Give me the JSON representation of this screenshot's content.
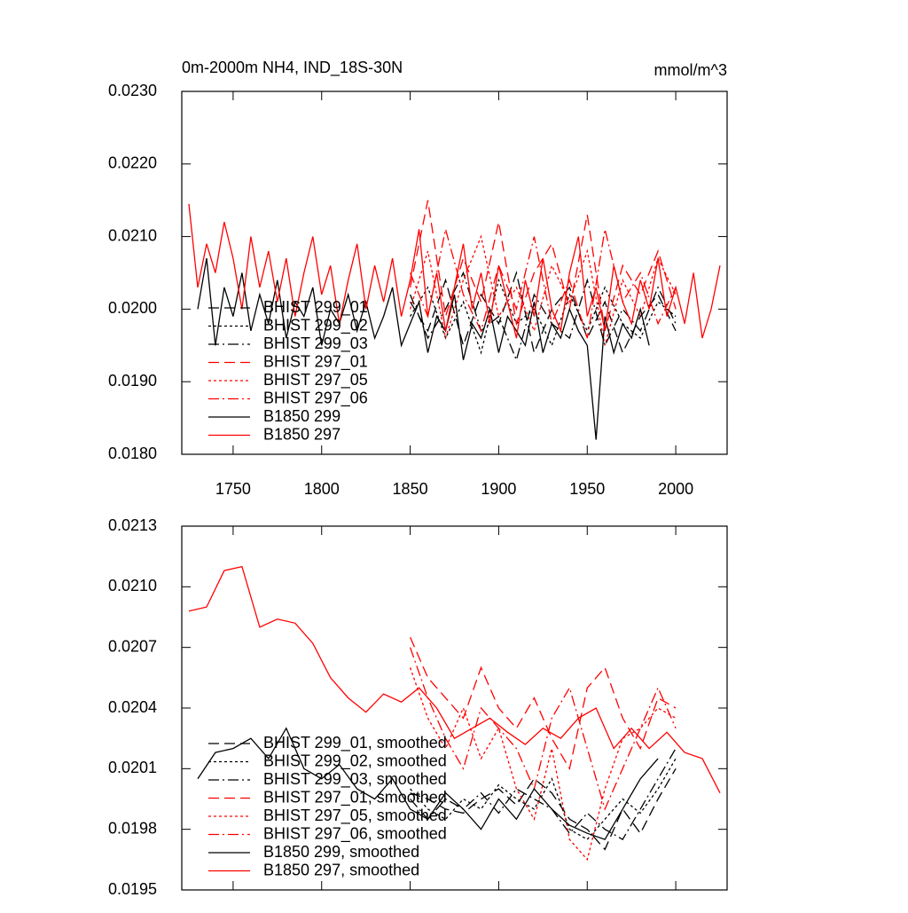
{
  "chart_data": [
    {
      "type": "line",
      "title": "0m-2000m NH4, IND_18S-30N",
      "units": "mmol/m^3",
      "xlim": [
        1721,
        2029
      ],
      "ylim": [
        0.018,
        0.023
      ],
      "xticks": [
        1750,
        1800,
        1850,
        1900,
        1950,
        2000
      ],
      "show_xtick_labels": true,
      "yticks": [
        {
          "value": 0.018,
          "label": "0.0180"
        },
        {
          "value": 0.019,
          "label": "0.0190"
        },
        {
          "value": 0.02,
          "label": "0.0200"
        },
        {
          "value": 0.021,
          "label": "0.0210"
        },
        {
          "value": 0.022,
          "label": "0.0220"
        },
        {
          "value": 0.023,
          "label": "0.0230"
        }
      ],
      "series": [
        {
          "name": "BHIST 299_01",
          "color": "#000000",
          "dash": "12 6",
          "x": [
            1850,
            1860,
            1870,
            1880,
            1890,
            1900,
            1910,
            1920,
            1930,
            1940,
            1950,
            1960,
            1970,
            1980,
            1990,
            2000
          ],
          "values": [
            0.0201,
            0.0197,
            0.0204,
            0.0195,
            0.0202,
            0.0198,
            0.0205,
            0.0194,
            0.02,
            0.0203,
            0.0196,
            0.0201,
            0.0194,
            0.0199,
            0.0202,
            0.0197
          ]
        },
        {
          "name": "BHIST 299_02",
          "color": "#000000",
          "dash": "3 3",
          "x": [
            1850,
            1860,
            1870,
            1880,
            1890,
            1900,
            1910,
            1920,
            1930,
            1940,
            1950,
            1960,
            1970,
            1980,
            1990,
            2000
          ],
          "values": [
            0.0199,
            0.0203,
            0.0196,
            0.0201,
            0.0194,
            0.0204,
            0.0198,
            0.02,
            0.0195,
            0.0202,
            0.0197,
            0.0203,
            0.0198,
            0.0196,
            0.0201,
            0.0199
          ]
        },
        {
          "name": "BHIST 299_03",
          "color": "#000000",
          "dash": "12 4 2 4",
          "x": [
            1850,
            1860,
            1870,
            1880,
            1890,
            1900,
            1910,
            1920,
            1930,
            1940,
            1950,
            1960,
            1970,
            1980,
            1990,
            2000
          ],
          "values": [
            0.0202,
            0.0196,
            0.02,
            0.0205,
            0.0197,
            0.0199,
            0.0193,
            0.0202,
            0.0198,
            0.0196,
            0.0204,
            0.0195,
            0.02,
            0.0197,
            0.0203,
            0.0198
          ]
        },
        {
          "name": "BHIST 297_01",
          "color": "#ff0000",
          "dash": "12 6",
          "x": [
            1850,
            1860,
            1870,
            1880,
            1890,
            1900,
            1910,
            1920,
            1930,
            1940,
            1950,
            1960,
            1970,
            1980,
            1990,
            2000
          ],
          "values": [
            0.0203,
            0.0215,
            0.0199,
            0.0207,
            0.0201,
            0.0212,
            0.0198,
            0.0205,
            0.0209,
            0.02,
            0.0213,
            0.0197,
            0.0206,
            0.0202,
            0.0208,
            0.02
          ]
        },
        {
          "name": "BHIST 297_05",
          "color": "#ff0000",
          "dash": "3 3",
          "x": [
            1850,
            1860,
            1870,
            1880,
            1890,
            1900,
            1910,
            1920,
            1930,
            1940,
            1950,
            1960,
            1970,
            1980,
            1990,
            2000
          ],
          "values": [
            0.02,
            0.0208,
            0.0196,
            0.0204,
            0.021,
            0.0199,
            0.0203,
            0.0197,
            0.0206,
            0.0201,
            0.0208,
            0.0195,
            0.0204,
            0.0199,
            0.0207,
            0.0202
          ]
        },
        {
          "name": "BHIST 297_06",
          "color": "#ff0000",
          "dash": "12 4 2 4",
          "x": [
            1850,
            1860,
            1870,
            1880,
            1890,
            1900,
            1910,
            1920,
            1930,
            1940,
            1950,
            1960,
            1970,
            1980,
            1990,
            2000
          ],
          "values": [
            0.0205,
            0.0199,
            0.0211,
            0.0202,
            0.0197,
            0.0206,
            0.02,
            0.021,
            0.0198,
            0.0204,
            0.0196,
            0.0211,
            0.0201,
            0.0205,
            0.0198,
            0.0203
          ]
        },
        {
          "name": "B1850 299",
          "color": "#000000",
          "dash": "none",
          "x": [
            1730,
            1735,
            1740,
            1745,
            1750,
            1755,
            1760,
            1765,
            1770,
            1775,
            1780,
            1785,
            1790,
            1795,
            1800,
            1805,
            1810,
            1815,
            1820,
            1825,
            1830,
            1835,
            1840,
            1845,
            1850,
            1855,
            1860,
            1865,
            1870,
            1875,
            1880,
            1885,
            1890,
            1895,
            1900,
            1905,
            1910,
            1915,
            1920,
            1925,
            1930,
            1935,
            1940,
            1945,
            1950,
            1955,
            1960,
            1965,
            1970,
            1975,
            1980,
            1985
          ],
          "values": [
            0.02,
            0.0207,
            0.0195,
            0.0203,
            0.0199,
            0.0205,
            0.0197,
            0.0202,
            0.0198,
            0.0204,
            0.0196,
            0.0201,
            0.0199,
            0.0203,
            0.0195,
            0.02,
            0.0198,
            0.0202,
            0.0197,
            0.0201,
            0.0196,
            0.0199,
            0.0203,
            0.0195,
            0.0198,
            0.0201,
            0.0194,
            0.0199,
            0.0197,
            0.0202,
            0.0193,
            0.0198,
            0.0196,
            0.02,
            0.0194,
            0.0199,
            0.0197,
            0.0195,
            0.0201,
            0.0194,
            0.0198,
            0.0196,
            0.02,
            0.0197,
            0.0195,
            0.0182,
            0.0199,
            0.0194,
            0.0198,
            0.0196,
            0.02,
            0.0195
          ]
        },
        {
          "name": "B1850 297",
          "color": "#ff0000",
          "dash": "none",
          "x": [
            1725,
            1730,
            1735,
            1740,
            1745,
            1750,
            1755,
            1760,
            1765,
            1770,
            1775,
            1780,
            1785,
            1790,
            1795,
            1800,
            1805,
            1810,
            1815,
            1820,
            1825,
            1830,
            1835,
            1840,
            1845,
            1850,
            1855,
            1860,
            1865,
            1870,
            1875,
            1880,
            1885,
            1890,
            1895,
            1900,
            1905,
            1910,
            1915,
            1920,
            1925,
            1930,
            1935,
            1940,
            1945,
            1950,
            1955,
            1960,
            1965,
            1970,
            1975,
            1980,
            1985,
            1990,
            1995,
            2000,
            2005,
            2010,
            2015,
            2020,
            2025
          ],
          "values": [
            0.02145,
            0.0203,
            0.0209,
            0.0205,
            0.0212,
            0.0207,
            0.02,
            0.021,
            0.0203,
            0.0208,
            0.0201,
            0.0207,
            0.0199,
            0.0205,
            0.021,
            0.0202,
            0.0206,
            0.0198,
            0.0204,
            0.0209,
            0.02,
            0.0206,
            0.0201,
            0.0207,
            0.0199,
            0.0204,
            0.0211,
            0.0199,
            0.0205,
            0.0197,
            0.0203,
            0.0209,
            0.02,
            0.0205,
            0.0198,
            0.0206,
            0.0201,
            0.0196,
            0.0204,
            0.0199,
            0.0207,
            0.02,
            0.0197,
            0.0205,
            0.021,
            0.0199,
            0.0203,
            0.0197,
            0.0206,
            0.0201,
            0.0198,
            0.0204,
            0.02,
            0.0207,
            0.0199,
            0.0203,
            0.0198,
            0.0205,
            0.0196,
            0.02,
            0.0206
          ]
        }
      ]
    },
    {
      "type": "line",
      "xlim": [
        1721,
        2029
      ],
      "ylim": [
        0.0195,
        0.0213
      ],
      "xticks": [
        1750,
        1800,
        1850,
        1900,
        1950,
        2000
      ],
      "show_xtick_labels": false,
      "yticks": [
        0.0195,
        0.0198,
        0.0201,
        0.0204,
        0.0207,
        {
          "value": 0.021,
          "label": "0.0210"
        },
        0.0213
      ],
      "series": [
        {
          "name": "BHIST 299_01, smoothed",
          "color": "#000000",
          "dash": "12 6",
          "x": [
            1850,
            1860,
            1870,
            1880,
            1890,
            1900,
            1910,
            1920,
            1930,
            1940,
            1950,
            1960,
            1970,
            1980,
            1990,
            2000
          ],
          "values": [
            0.01998,
            0.01995,
            0.0199,
            0.01988,
            0.01995,
            0.02,
            0.01992,
            0.02005,
            0.01998,
            0.01985,
            0.0198,
            0.0197,
            0.0199,
            0.01978,
            0.01995,
            0.0201
          ]
        },
        {
          "name": "BHIST 299_02, smoothed",
          "color": "#000000",
          "dash": "3 3",
          "x": [
            1850,
            1860,
            1870,
            1880,
            1890,
            1900,
            1910,
            1920,
            1930,
            1940,
            1950,
            1960,
            1970,
            1980,
            1990,
            2000
          ],
          "values": [
            0.02,
            0.0199,
            0.01985,
            0.01995,
            0.0199,
            0.02002,
            0.01995,
            0.0199,
            0.02005,
            0.0198,
            0.01975,
            0.01985,
            0.01995,
            0.01988,
            0.02,
            0.02015
          ]
        },
        {
          "name": "BHIST 299_03, smoothed",
          "color": "#000000",
          "dash": "12 4 2 4",
          "x": [
            1850,
            1860,
            1870,
            1880,
            1890,
            1900,
            1910,
            1920,
            1930,
            1940,
            1950,
            1960,
            1970,
            1980,
            1990,
            2000
          ],
          "values": [
            0.01995,
            0.01985,
            0.01995,
            0.0199,
            0.01998,
            0.01988,
            0.02,
            0.01995,
            0.0199,
            0.01978,
            0.01988,
            0.0198,
            0.01975,
            0.0199,
            0.02005,
            0.0202
          ]
        },
        {
          "name": "BHIST 297_01, smoothed",
          "color": "#ff0000",
          "dash": "12 6",
          "x": [
            1850,
            1860,
            1870,
            1880,
            1890,
            1900,
            1910,
            1920,
            1930,
            1940,
            1950,
            1960,
            1970,
            1980,
            1990,
            2000
          ],
          "values": [
            0.02075,
            0.02055,
            0.02045,
            0.02035,
            0.0206,
            0.0204,
            0.0203,
            0.02045,
            0.02025,
            0.0201,
            0.0205,
            0.0206,
            0.02035,
            0.0202,
            0.02045,
            0.0204
          ]
        },
        {
          "name": "BHIST 297_05, smoothed",
          "color": "#ff0000",
          "dash": "3 3",
          "x": [
            1850,
            1860,
            1870,
            1880,
            1890,
            1900,
            1910,
            1920,
            1930,
            1940,
            1950,
            1960,
            1970,
            1980,
            1990,
            2000
          ],
          "values": [
            0.0206,
            0.02035,
            0.0202,
            0.0204,
            0.02015,
            0.0203,
            0.02,
            0.01985,
            0.0202,
            0.01975,
            0.01965,
            0.02,
            0.02025,
            0.0203,
            0.0204,
            0.02035
          ]
        },
        {
          "name": "BHIST 297_06, smoothed",
          "color": "#ff0000",
          "dash": "12 4 2 4",
          "x": [
            1850,
            1860,
            1870,
            1880,
            1890,
            1900,
            1910,
            1920,
            1930,
            1940,
            1950,
            1960,
            1970,
            1980,
            1990,
            2000
          ],
          "values": [
            0.0207,
            0.02045,
            0.02025,
            0.0201,
            0.0204,
            0.0203,
            0.0202,
            0.02,
            0.02035,
            0.0205,
            0.0202,
            0.0199,
            0.0201,
            0.0203,
            0.0205,
            0.0203
          ]
        },
        {
          "name": "B1850 299, smoothed",
          "color": "#000000",
          "dash": "none",
          "x": [
            1730,
            1740,
            1750,
            1760,
            1770,
            1780,
            1790,
            1800,
            1810,
            1820,
            1830,
            1840,
            1850,
            1860,
            1870,
            1880,
            1890,
            1900,
            1910,
            1920,
            1930,
            1940,
            1950,
            1960,
            1970,
            1980,
            1990
          ],
          "values": [
            0.02005,
            0.02018,
            0.0202,
            0.02025,
            0.02015,
            0.0203,
            0.0201,
            0.02005,
            0.02012,
            0.02,
            0.01995,
            0.02005,
            0.0199,
            0.01985,
            0.01998,
            0.0199,
            0.0198,
            0.01995,
            0.01985,
            0.02,
            0.0199,
            0.01982,
            0.01978,
            0.01975,
            0.0199,
            0.02005,
            0.02015
          ]
        },
        {
          "name": "B1850 297, smoothed",
          "color": "#ff0000",
          "dash": "none",
          "x": [
            1725,
            1735,
            1745,
            1755,
            1765,
            1775,
            1785,
            1795,
            1805,
            1815,
            1825,
            1835,
            1845,
            1855,
            1865,
            1875,
            1885,
            1895,
            1905,
            1915,
            1925,
            1935,
            1945,
            1955,
            1965,
            1975,
            1985,
            1995,
            2005,
            2015,
            2025
          ],
          "values": [
            0.02088,
            0.0209,
            0.02108,
            0.0211,
            0.0208,
            0.02084,
            0.02082,
            0.02072,
            0.02055,
            0.02045,
            0.02038,
            0.02047,
            0.02043,
            0.0205,
            0.0204,
            0.02025,
            0.0203,
            0.02035,
            0.02028,
            0.02022,
            0.0203,
            0.02025,
            0.02035,
            0.0204,
            0.0202,
            0.0203,
            0.0202,
            0.02028,
            0.02018,
            0.02015,
            0.01998
          ]
        }
      ]
    }
  ]
}
